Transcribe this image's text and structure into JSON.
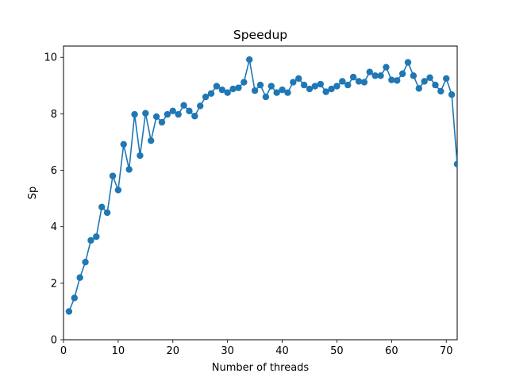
{
  "chart_data": {
    "type": "line",
    "title": "Speedup",
    "xlabel": "Number of threads",
    "ylabel": "Sp",
    "xlim": [
      0,
      72
    ],
    "ylim": [
      0,
      10.4
    ],
    "xticks": [
      0,
      10,
      20,
      30,
      40,
      50,
      60,
      70
    ],
    "yticks": [
      0,
      2,
      4,
      6,
      8,
      10
    ],
    "grid": false,
    "marker": "circle",
    "color": "#1f77b4",
    "series": [
      {
        "x": [
          1,
          2,
          3,
          4,
          5,
          6,
          7,
          8,
          9,
          10,
          11,
          12,
          13,
          14,
          15,
          16,
          17,
          18,
          19,
          20,
          21,
          22,
          23,
          24,
          25,
          26,
          27,
          28,
          29,
          30,
          31,
          32,
          33,
          34,
          35,
          36,
          37,
          38,
          39,
          40,
          41,
          42,
          43,
          44,
          45,
          46,
          47,
          48,
          49,
          50,
          51,
          52,
          53,
          54,
          55,
          56,
          57,
          58,
          59,
          60,
          61,
          62,
          63,
          64,
          65,
          66,
          67,
          68,
          69,
          70,
          71,
          72
        ],
        "values": [
          1.0,
          1.48,
          2.2,
          2.75,
          3.52,
          3.65,
          4.7,
          4.5,
          5.8,
          5.3,
          6.92,
          6.03,
          7.98,
          6.52,
          8.02,
          7.05,
          7.9,
          7.7,
          7.98,
          8.1,
          7.98,
          8.3,
          8.1,
          7.92,
          8.28,
          8.6,
          8.72,
          8.98,
          8.85,
          8.75,
          8.88,
          8.92,
          9.12,
          9.92,
          8.82,
          9.02,
          8.6,
          8.98,
          8.75,
          8.85,
          8.75,
          9.12,
          9.25,
          9.02,
          8.88,
          8.98,
          9.05,
          8.78,
          8.88,
          8.98,
          9.15,
          9.02,
          9.3,
          9.15,
          9.12,
          9.48,
          9.35,
          9.35,
          9.65,
          9.2,
          9.18,
          9.42,
          9.82,
          9.35,
          8.9,
          9.15,
          9.28,
          9.02,
          8.8,
          9.25,
          8.68,
          6.22
        ]
      }
    ]
  }
}
